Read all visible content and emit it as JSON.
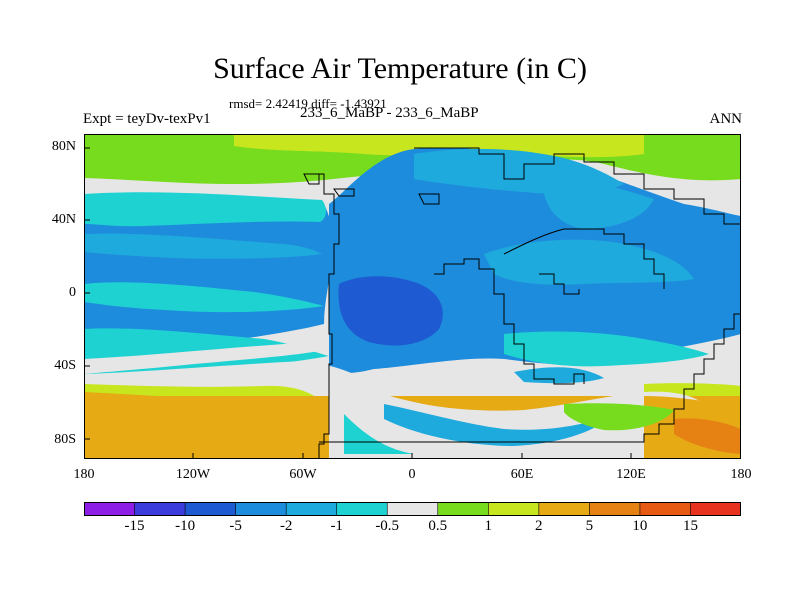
{
  "figure": {
    "title": "Surface Air Temperature (in C)",
    "stats": "rmsd= 2.42419 diff= -1.43921",
    "experiment": "Expt = teyDv-texPv1",
    "comparison": "233_6_MaBP - 233_6_MaBP",
    "season": "ANN"
  },
  "axes": {
    "y_ticks": [
      "80N",
      "40N",
      "0",
      "40S",
      "80S"
    ],
    "x_ticks": [
      "180",
      "120W",
      "60W",
      "0",
      "60E",
      "120E",
      "180"
    ]
  },
  "colorbar": {
    "labels": [
      "-15",
      "-10",
      "-5",
      "-2",
      "-1",
      "-0.5",
      "0.5",
      "1",
      "2",
      "5",
      "10",
      "15"
    ],
    "colors": [
      "#8c1ee6",
      "#3c3cdc",
      "#1e5ad2",
      "#1e8cdc",
      "#1eaadc",
      "#1ed2d2",
      "#e6e6e6",
      "#78dc1e",
      "#c8e61e",
      "#e6aa14",
      "#e68214",
      "#e65a14",
      "#e6321e"
    ]
  },
  "map_colors": {
    "white": "#e6e6e6",
    "green": "#78dc1e",
    "yellowgreen": "#c8e61e",
    "orange": "#e6aa14",
    "darkorange": "#e68214",
    "cyan": "#1ed2d2",
    "lightblue": "#1eaadc",
    "blue": "#1e8cdc",
    "darkblue": "#1e5ad2"
  }
}
